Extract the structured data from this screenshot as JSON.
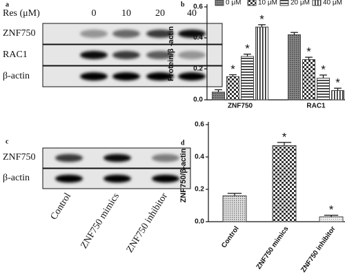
{
  "panels": {
    "a": {
      "label": "a",
      "treatment": "Res (μM)",
      "doses": [
        "0",
        "10",
        "20",
        "40"
      ],
      "rows": [
        "ZNF750",
        "RAC1",
        "β-actin"
      ]
    },
    "c": {
      "label": "c",
      "rows": [
        "ZNF750",
        "β-actin"
      ],
      "lanes": [
        "Control",
        "ZNF750 mimics",
        "ZNF750 inhibitor"
      ]
    }
  },
  "chart_data": [
    {
      "type": "bar",
      "panel": "b",
      "y_label": "Protein/β -actin",
      "categories": [
        "ZNF750",
        "RAC1"
      ],
      "ylim": [
        0,
        0.6
      ],
      "yticks": [
        {
          "value": 0,
          "label": "0.0"
        },
        0.2,
        0.4,
        0.6
      ],
      "legend": "top",
      "series": [
        {
          "name": "0 μM",
          "color": "#444",
          "pattern": "dense",
          "values": [
            0.05,
            0.42
          ],
          "errors": [
            0.015,
            0.015
          ]
        },
        {
          "name": "10 μM",
          "color": "#444",
          "pattern": "checker",
          "values": [
            0.15,
            0.26
          ],
          "errors": [
            0.012,
            0.015
          ],
          "annotations": [
            "*",
            "*"
          ]
        },
        {
          "name": "20 μM",
          "color": "#444",
          "pattern": "hlines",
          "values": [
            0.28,
            0.14
          ],
          "errors": [
            0.015,
            0.02
          ],
          "annotations": [
            "*",
            "*"
          ]
        },
        {
          "name": "40 μM",
          "color": "#444",
          "pattern": "vlines",
          "values": [
            0.47,
            0.06
          ],
          "errors": [
            0.015,
            0.015
          ],
          "annotations": [
            "*",
            "*"
          ]
        }
      ]
    },
    {
      "type": "bar",
      "panel": "d",
      "y_label": "ZNF750/β-actin",
      "categories": [
        "Control",
        "ZNF750 mimics",
        "ZNF750 inhibitor"
      ],
      "ylim": [
        0,
        0.6
      ],
      "yticks": [
        {
          "value": 0,
          "label": "0.0"
        },
        0.2,
        0.4,
        0.6
      ],
      "color": "#444",
      "patterns": [
        "dots",
        "checker",
        "lightdots"
      ],
      "values": [
        0.16,
        0.47,
        0.03
      ],
      "errors": [
        0.015,
        0.02,
        0.01
      ],
      "annotations": [
        null,
        "*",
        "*"
      ]
    }
  ]
}
